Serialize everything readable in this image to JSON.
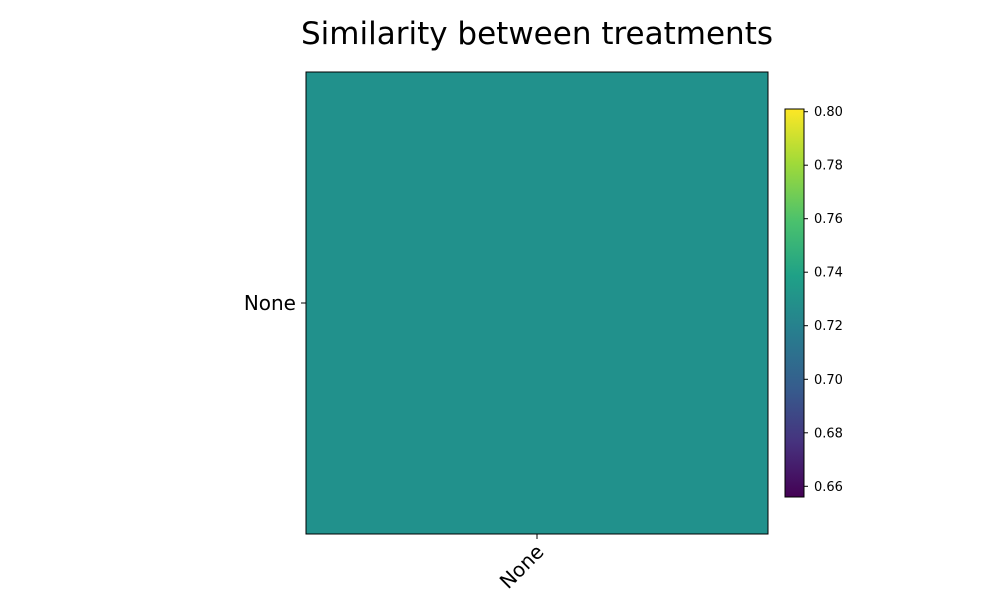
{
  "chart_data": {
    "type": "heatmap",
    "title": "Similarity between treatments",
    "x_categories": [
      "None"
    ],
    "y_categories": [
      "None"
    ],
    "values": [
      [
        0.728
      ]
    ],
    "colormap": "viridis",
    "colorbar": {
      "range": [
        0.656,
        0.801
      ],
      "ticks": [
        0.66,
        0.68,
        0.7,
        0.72,
        0.74,
        0.76,
        0.78,
        0.8
      ],
      "tick_labels": [
        "0.66",
        "0.68",
        "0.70",
        "0.72",
        "0.74",
        "0.76",
        "0.78",
        "0.80"
      ]
    },
    "grid": false,
    "xlabel": "",
    "ylabel": ""
  },
  "colors": {
    "cell": "#21918c",
    "frame": "#000000",
    "background": "#ffffff"
  }
}
